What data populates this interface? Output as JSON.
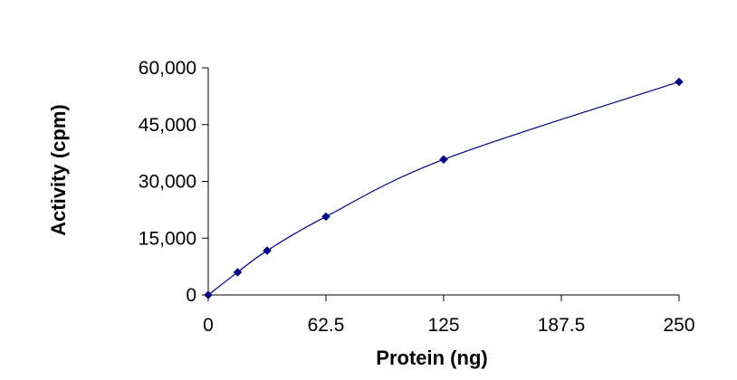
{
  "chart_data": {
    "type": "scatter",
    "title": "",
    "xlabel": "Protein (ng)",
    "ylabel": "Activity (cpm)",
    "xlim": [
      0,
      250
    ],
    "ylim": [
      0,
      60000
    ],
    "x_ticks": [
      0,
      62.5,
      125,
      187.5,
      250
    ],
    "x_tick_labels": [
      "0",
      "62.5",
      "125",
      "187.5",
      "250"
    ],
    "y_ticks": [
      0,
      15000,
      30000,
      45000,
      60000
    ],
    "y_tick_labels": [
      "0",
      "15,000",
      "30,000",
      "45,000",
      "60,000"
    ],
    "grid": false,
    "legend": "none",
    "series": [
      {
        "x": [
          0,
          15.6,
          31.25,
          62.5,
          125,
          250
        ],
        "y": [
          0,
          6000,
          11700,
          20700,
          35800,
          56300
        ],
        "marker": "diamond",
        "line": "smooth",
        "color": "#000080"
      }
    ]
  }
}
